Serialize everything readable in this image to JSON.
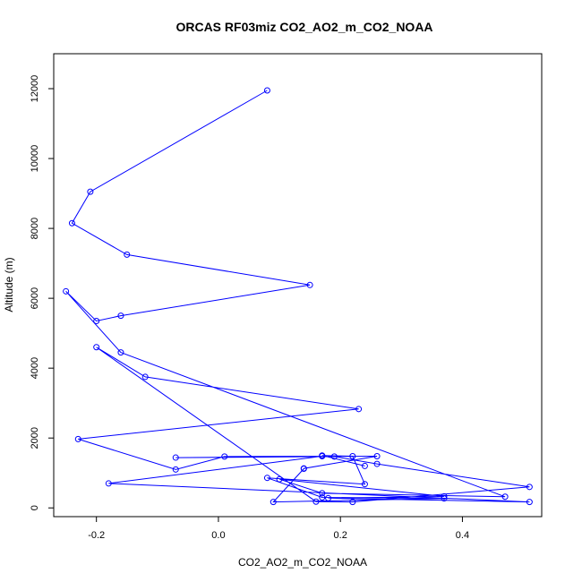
{
  "chart_data": {
    "type": "line",
    "title": "ORCAS RF03miz CO2_AO2_m_CO2_NOAA",
    "xlabel": "CO2_AO2_m_CO2_NOAA",
    "ylabel": "Altitude (m)",
    "xlim": [
      -0.27,
      0.53
    ],
    "ylim": [
      -250,
      13000
    ],
    "x_ticks": [
      -0.2,
      0.0,
      0.2,
      0.4
    ],
    "x_tick_labels": [
      "-0.2",
      "0.0",
      "0.2",
      "0.4"
    ],
    "y_ticks": [
      0,
      2000,
      4000,
      6000,
      8000,
      10000,
      12000
    ],
    "y_tick_labels": [
      "0",
      "2000",
      "4000",
      "6000",
      "8000",
      "10000",
      "12000"
    ],
    "grid": false,
    "legend": "none",
    "series": [
      {
        "color": "#0000ff",
        "marker": "open-circle",
        "points": [
          [
            0.08,
            11950
          ],
          [
            -0.21,
            9050
          ],
          [
            -0.24,
            8150
          ],
          [
            -0.15,
            7250
          ],
          [
            0.15,
            6380
          ],
          [
            -0.16,
            5500
          ],
          [
            -0.2,
            5350
          ],
          [
            -0.25,
            6200
          ],
          [
            -0.16,
            4450
          ],
          [
            0.47,
            320
          ],
          [
            0.17,
            420
          ],
          [
            0.1,
            820
          ],
          [
            0.37,
            330
          ],
          [
            0.18,
            280
          ],
          [
            0.51,
            170
          ],
          [
            -0.18,
            700
          ],
          [
            0.17,
            1480
          ],
          [
            0.01,
            1470
          ],
          [
            -0.07,
            1100
          ],
          [
            -0.23,
            1970
          ],
          [
            0.23,
            2830
          ],
          [
            -0.12,
            3750
          ],
          [
            -0.2,
            4600
          ],
          [
            0.16,
            180
          ],
          [
            0.22,
            170
          ],
          [
            0.51,
            600
          ],
          [
            0.26,
            1260
          ],
          [
            0.19,
            1470
          ],
          [
            -0.07,
            1440
          ],
          [
            0.26,
            1480
          ],
          [
            0.14,
            1130
          ],
          [
            0.14,
            1120
          ],
          [
            0.09,
            170
          ],
          [
            0.37,
            270
          ],
          [
            0.17,
            300
          ],
          [
            0.08,
            860
          ],
          [
            0.24,
            680
          ],
          [
            0.22,
            1480
          ],
          [
            0.17,
            1500
          ],
          [
            0.24,
            1200
          ]
        ]
      }
    ]
  }
}
